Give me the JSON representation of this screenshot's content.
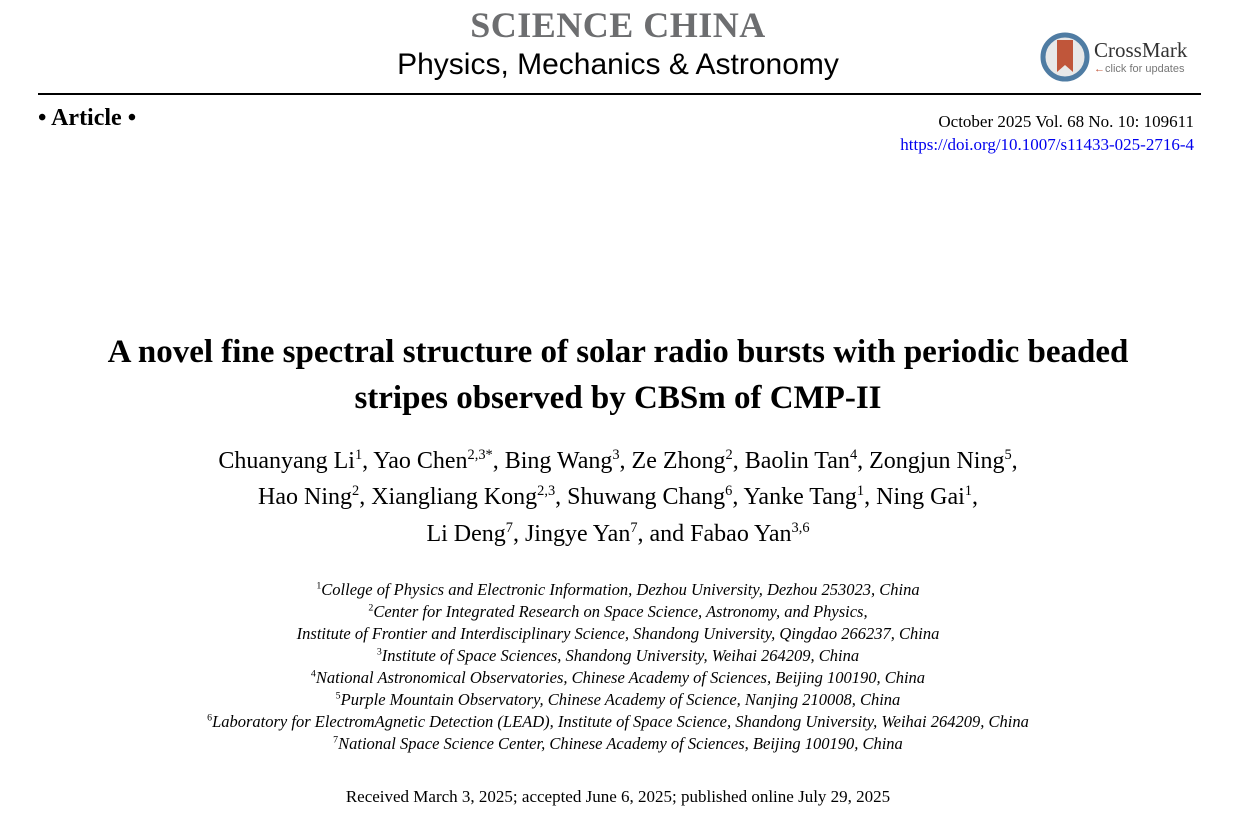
{
  "journal": {
    "name": "SCIENCE CHINA",
    "subject": "Physics, Mechanics & Astronomy",
    "crossmark": "CrossMark",
    "crossmark_sub": "click for updates"
  },
  "article_type": "• Article •",
  "issue": "October 2025  Vol. 68  No. 10: 109611",
  "doi": "https://doi.org/10.1007/s11433-025-2716-4",
  "title_lines": [
    "A novel fine spectral structure of solar radio bursts with periodic beaded",
    "stripes observed by CBSm of CMP-II"
  ],
  "authors": [
    {
      "name": "Chuanyang Li",
      "aff": "1",
      "sep": ", "
    },
    {
      "name": "Yao Chen",
      "aff": "2,3*",
      "sep": ", "
    },
    {
      "name": "Bing Wang",
      "aff": "3",
      "sep": ", "
    },
    {
      "name": "Ze Zhong",
      "aff": "2",
      "sep": ", "
    },
    {
      "name": "Baolin Tan",
      "aff": "4",
      "sep": ", "
    },
    {
      "name": "Zongjun Ning",
      "aff": "5",
      "sep": ","
    },
    {
      "name": "Hao Ning",
      "aff": "2",
      "sep": ", "
    },
    {
      "name": "Xiangliang Kong",
      "aff": "2,3",
      "sep": ", "
    },
    {
      "name": "Shuwang Chang",
      "aff": "6",
      "sep": ", "
    },
    {
      "name": "Yanke Tang",
      "aff": "1",
      "sep": ", "
    },
    {
      "name": "Ning Gai",
      "aff": "1",
      "sep": ","
    },
    {
      "name": "Li Deng",
      "aff": "7",
      "sep": ", "
    },
    {
      "name": "Jingye Yan",
      "aff": "7",
      "sep": ", "
    },
    {
      "name": "and Fabao Yan",
      "aff": "3,6",
      "sep": ""
    }
  ],
  "affiliations": [
    {
      "num": "1",
      "text": "College of Physics and Electronic Information, Dezhou University, Dezhou 253023, China"
    },
    {
      "num": "2",
      "text": "Center for Integrated Research on Space Science, Astronomy, and Physics,"
    },
    {
      "num": "",
      "text": "Institute of Frontier and Interdisciplinary Science, Shandong University, Qingdao 266237, China"
    },
    {
      "num": "3",
      "text": "Institute of Space Sciences, Shandong University, Weihai 264209, China"
    },
    {
      "num": "4",
      "text": "National Astronomical Observatories, Chinese Academy of Sciences, Beijing 100190, China"
    },
    {
      "num": "5",
      "text": "Purple Mountain Observatory, Chinese Academy of Science, Nanjing 210008, China"
    },
    {
      "num": "6",
      "text": "Laboratory for ElectromAgnetic Detection (LEAD), Institute of Space Science, Shandong University, Weihai 264209, China"
    },
    {
      "num": "7",
      "text": "National Space Science Center, Chinese Academy of Sciences, Beijing 100190, China"
    }
  ],
  "received": "Received March 3, 2025; accepted June 6, 2025; published online July 29, 2025",
  "colors": {
    "journal": "#6d6e70",
    "link": "#0000ee",
    "crossmark_ribbon": "#c0563a",
    "crossmark_ring": "#4f7ca3"
  }
}
